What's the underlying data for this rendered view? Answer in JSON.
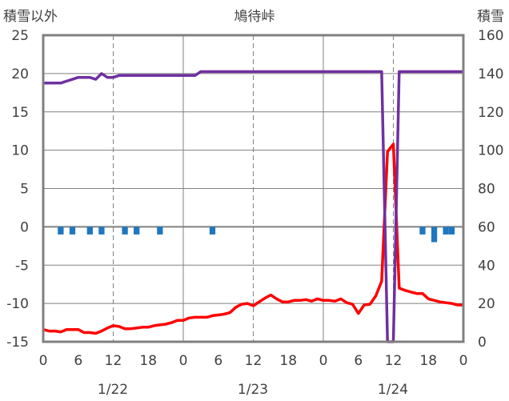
{
  "chart_data": {
    "type": "line",
    "title": "鳩待峠",
    "y_left_label": "積雪以外",
    "y_right_label": "積雪",
    "y_left_ticks": [
      "25",
      "20",
      "15",
      "10",
      "5",
      "0",
      "-5",
      "-10",
      "-15"
    ],
    "y_right_ticks": [
      "160",
      "140",
      "120",
      "100",
      "80",
      "60",
      "40",
      "20",
      "0"
    ],
    "x_ticks": [
      "0",
      "6",
      "12",
      "18",
      "0",
      "6",
      "12",
      "18",
      "0",
      "6",
      "12",
      "18",
      "0"
    ],
    "date_labels": [
      "1/22",
      "1/23",
      "1/24"
    ],
    "x_range_hours": [
      0,
      72
    ],
    "y_left_range": [
      -15,
      25
    ],
    "y_right_range": [
      0,
      160
    ],
    "grid": true,
    "colors": {
      "temperature": "#ff0000",
      "snow_depth": "#7030a0",
      "precipitation": "#1f77c0",
      "frame": "#808080",
      "grid": "#808080"
    },
    "series": [
      {
        "key": "temperature",
        "axis": "left",
        "x": [
          0,
          1,
          2,
          3,
          4,
          5,
          6,
          7,
          8,
          9,
          10,
          11,
          12,
          13,
          14,
          15,
          16,
          17,
          18,
          19,
          20,
          21,
          22,
          23,
          24,
          25,
          26,
          27,
          28,
          29,
          30,
          31,
          32,
          33,
          34,
          35,
          36,
          37,
          38,
          39,
          40,
          41,
          42,
          43,
          44,
          45,
          46,
          47,
          48,
          49,
          50,
          51,
          52,
          53,
          54,
          55,
          56,
          57,
          58,
          59,
          60,
          61,
          62,
          63,
          64,
          65,
          66,
          67,
          68,
          69,
          70,
          71,
          72
        ],
        "values": [
          -13.4,
          -13.6,
          -13.6,
          -13.7,
          -13.4,
          -13.4,
          -13.4,
          -13.8,
          -13.8,
          -13.9,
          -13.6,
          -13.2,
          -12.9,
          -13.0,
          -13.3,
          -13.3,
          -13.2,
          -13.1,
          -13.1,
          -12.9,
          -12.8,
          -12.7,
          -12.5,
          -12.2,
          -12.2,
          -11.9,
          -11.8,
          -11.8,
          -11.8,
          -11.6,
          -11.5,
          -11.4,
          -11.2,
          -10.5,
          -10.1,
          -10.0,
          -10.3,
          -9.8,
          -9.3,
          -8.9,
          -9.4,
          -9.8,
          -9.8,
          -9.6,
          -9.6,
          -9.5,
          -9.7,
          -9.4,
          -9.6,
          -9.6,
          -9.7,
          -9.4,
          -9.9,
          -10.1,
          -11.3,
          -10.2,
          -10.1,
          -9.0,
          -7.1,
          9.8,
          10.8,
          -8.0,
          -8.3,
          -8.5,
          -8.7,
          -8.7,
          -9.4,
          -9.6,
          -9.8,
          -9.9,
          -10.0,
          -10.2,
          -10.2
        ]
      },
      {
        "key": "snow_depth",
        "axis": "right",
        "x": [
          0,
          1,
          2,
          3,
          4,
          5,
          6,
          7,
          8,
          9,
          10,
          11,
          12,
          13,
          14,
          15,
          16,
          17,
          18,
          19,
          20,
          21,
          22,
          23,
          24,
          25,
          26,
          27,
          28,
          29,
          30,
          31,
          32,
          33,
          34,
          35,
          36,
          37,
          38,
          39,
          40,
          41,
          42,
          43,
          44,
          45,
          46,
          47,
          48,
          49,
          50,
          51,
          52,
          53,
          54,
          55,
          56,
          57,
          58,
          59,
          60,
          61,
          62,
          63,
          64,
          65,
          66,
          67,
          68,
          69,
          70,
          71,
          72
        ],
        "values": [
          135,
          135,
          135,
          135,
          136,
          137,
          138,
          138,
          138,
          137,
          140,
          138,
          138,
          139,
          139,
          139,
          139,
          139,
          139,
          139,
          139,
          139,
          139,
          139,
          139,
          139,
          139,
          141,
          141,
          141,
          141,
          141,
          141,
          141,
          141,
          141,
          141,
          141,
          141,
          141,
          141,
          141,
          141,
          141,
          141,
          141,
          141,
          141,
          141,
          141,
          141,
          141,
          141,
          141,
          141,
          141,
          141,
          141,
          141,
          0,
          0,
          141,
          141,
          141,
          141,
          141,
          141,
          141,
          141,
          141,
          141,
          141,
          141
        ]
      },
      {
        "key": "precipitation",
        "axis": "left",
        "type": "bar",
        "x": [
          3,
          5,
          8,
          10,
          14,
          16,
          20,
          29,
          65,
          67,
          69,
          70
        ],
        "values": [
          -1,
          -1,
          -1,
          -1,
          -1,
          -1,
          -1,
          -1,
          -1,
          -2,
          -1,
          -1
        ]
      }
    ]
  }
}
